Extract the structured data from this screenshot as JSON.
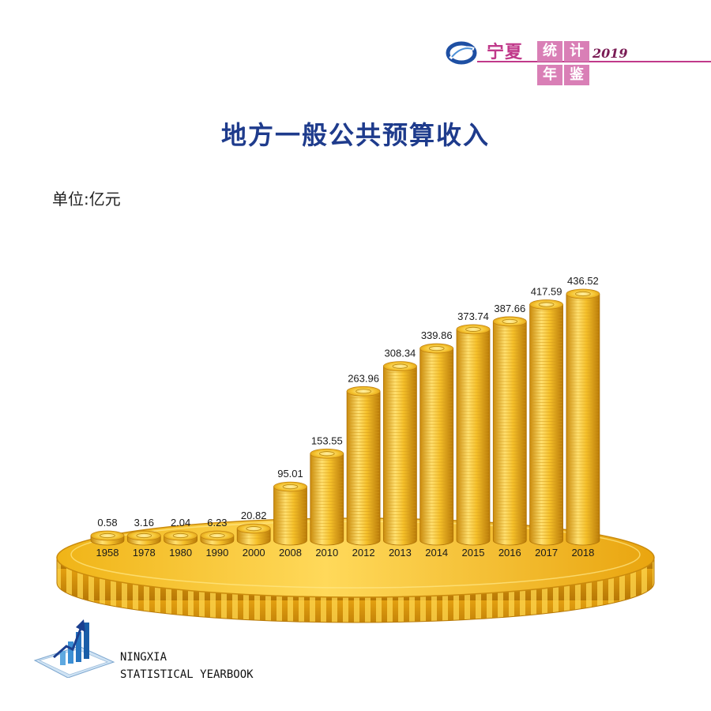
{
  "brand": {
    "name": "宁夏",
    "box_chars": [
      "统",
      "计",
      "年",
      "鉴"
    ],
    "year": "2019"
  },
  "title": "地方一般公共预算收入",
  "unit_label": "单位:亿元",
  "footer": {
    "line1": "NINGXIA",
    "line2": "STATISTICAL YEARBOOK"
  },
  "colors": {
    "title": "#1e3b8c",
    "brand": "#c0398a",
    "gold": "#f2b21f",
    "gold_dark": "#c98a0c",
    "gold_light": "#ffe070"
  },
  "chart_data": {
    "type": "bar",
    "title": "地方一般公共预算收入",
    "ylabel": "单位:亿元",
    "categories": [
      "1958",
      "1978",
      "1980",
      "1990",
      "2000",
      "2008",
      "2010",
      "2012",
      "2013",
      "2014",
      "2015",
      "2016",
      "2017",
      "2018"
    ],
    "values": [
      0.58,
      3.16,
      2.04,
      6.23,
      20.82,
      95.01,
      153.55,
      263.96,
      308.34,
      339.86,
      373.74,
      387.66,
      417.59,
      436.52
    ],
    "value_labels": [
      "0.58",
      "3.16",
      "2.04",
      "6.23",
      "20.82",
      "95.01",
      "153.55",
      "263.96",
      "308.34",
      "339.86",
      "373.74",
      "387.66",
      "417.59",
      "436.52"
    ],
    "ylim": [
      0,
      436.52
    ],
    "grid": false,
    "legend": "none"
  }
}
